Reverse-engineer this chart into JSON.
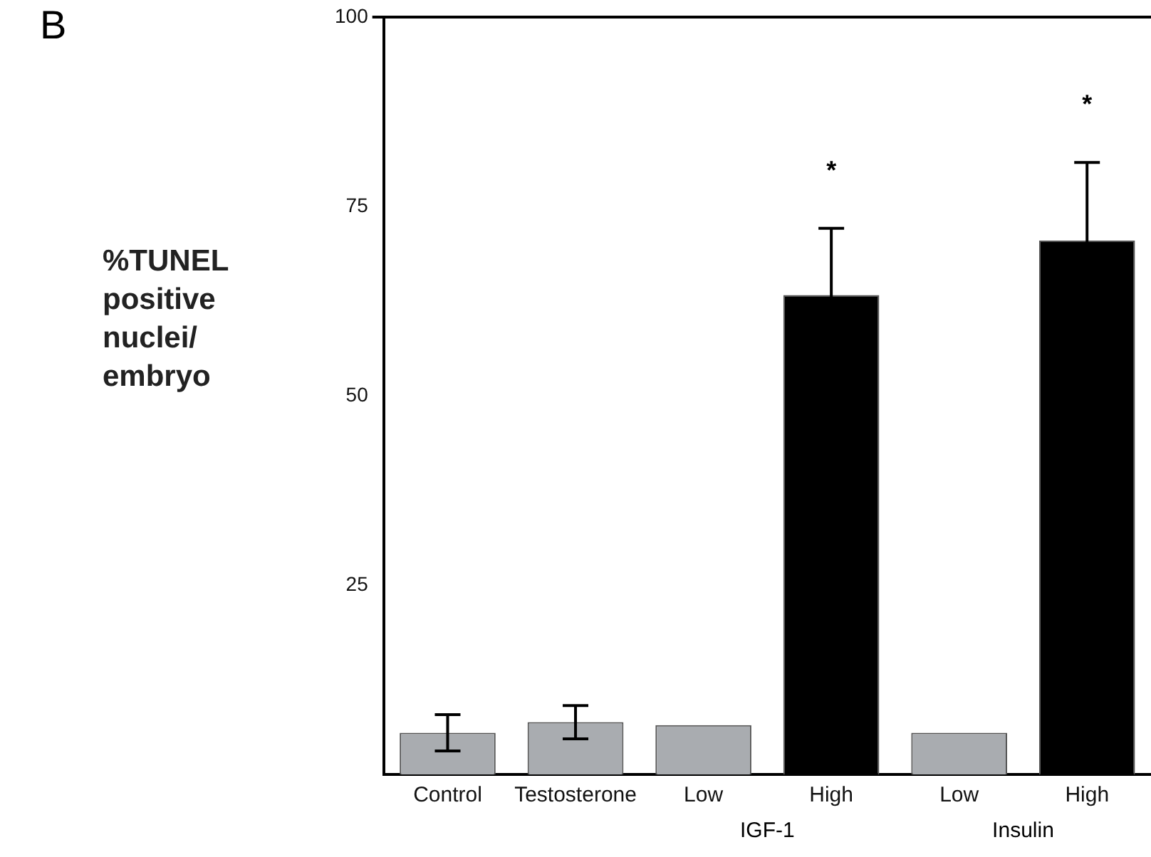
{
  "chart_data": {
    "type": "bar",
    "title": "B",
    "ylabel": "%TUNEL positive nuclei/ embryo",
    "categories": [
      "Control",
      "Testosterone",
      "Low",
      "High",
      "Low",
      "High"
    ],
    "values": [
      5.5,
      6.9,
      6.5,
      63.3,
      5.5,
      70.5
    ],
    "colors": [
      "#a9acb0",
      "#a9acb0",
      "#a9acb0",
      "#000000",
      "#a9acb0",
      "#000000"
    ],
    "errors": [
      2.4,
      2.2,
      null,
      8.8,
      null,
      10.3
    ],
    "ylim": [
      0,
      100
    ],
    "yticks": [
      25,
      50,
      75,
      100
    ],
    "grid": false,
    "legend": false,
    "annotations": [
      "*",
      "*",
      "IGF-1",
      "Insulin"
    ]
  }
}
